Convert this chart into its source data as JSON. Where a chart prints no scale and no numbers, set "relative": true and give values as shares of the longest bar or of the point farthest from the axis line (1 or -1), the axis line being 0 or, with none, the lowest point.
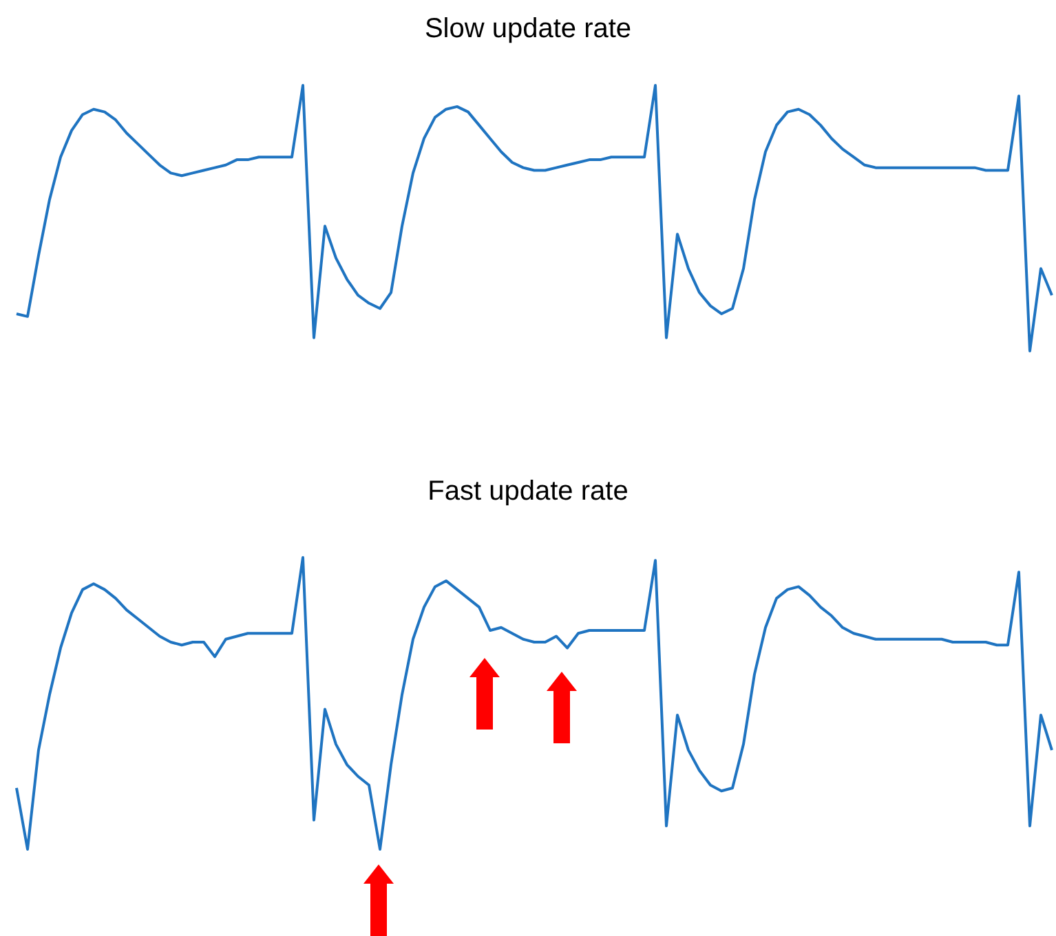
{
  "chart_data": [
    {
      "type": "line",
      "title": "Slow update rate",
      "relative": true,
      "tick_labels": false,
      "color": "#1f74c1",
      "categories": [
        null,
        null,
        null,
        null,
        null,
        null,
        null,
        null,
        null,
        null,
        null,
        null,
        null,
        null,
        null,
        null,
        null,
        null,
        null,
        null,
        null,
        null,
        null,
        null,
        null,
        null,
        null,
        null,
        null,
        null,
        null,
        null,
        null,
        null,
        null,
        null,
        null,
        null,
        null,
        null,
        null,
        null,
        null,
        null,
        null,
        null,
        null,
        null,
        null,
        null,
        null,
        null,
        null,
        null,
        null,
        null,
        null,
        null,
        null,
        null,
        null,
        null,
        null,
        null,
        null,
        null,
        null,
        null,
        null,
        null,
        null,
        null,
        null,
        null,
        null,
        null,
        null,
        null,
        null,
        null,
        null,
        null,
        null,
        null,
        null,
        null,
        null,
        null,
        null,
        null,
        null,
        null,
        null,
        null,
        null
      ],
      "values": [
        0.14,
        0.13,
        0.36,
        0.57,
        0.73,
        0.83,
        0.89,
        0.91,
        0.9,
        0.87,
        0.82,
        0.78,
        0.74,
        0.7,
        0.67,
        0.66,
        0.67,
        0.68,
        0.69,
        0.7,
        0.72,
        0.72,
        0.73,
        0.73,
        0.73,
        0.73,
        1,
        0.05,
        0.47,
        0.35,
        0.27,
        0.21,
        0.18,
        0.16,
        0.22,
        0.47,
        0.67,
        0.8,
        0.88,
        0.91,
        0.92,
        0.9,
        0.85,
        0.8,
        0.75,
        0.71,
        0.69,
        0.68,
        0.68,
        0.69,
        0.7,
        0.71,
        0.72,
        0.72,
        0.73,
        0.73,
        0.73,
        0.73,
        1,
        0.05,
        0.44,
        0.31,
        0.22,
        0.17,
        0.14,
        0.16,
        0.31,
        0.57,
        0.75,
        0.85,
        0.9,
        0.91,
        0.89,
        0.85,
        0.8,
        0.76,
        0.73,
        0.7,
        0.69,
        0.69,
        0.69,
        0.69,
        0.69,
        0.69,
        0.69,
        0.69,
        0.69,
        0.69,
        0.68,
        0.68,
        0.68,
        0.96,
        0,
        0.31,
        0.21
      ]
    },
    {
      "type": "line",
      "title": "Fast update rate",
      "relative": true,
      "tick_labels": false,
      "color": "#1f74c1",
      "categories": [
        null,
        null,
        null,
        null,
        null,
        null,
        null,
        null,
        null,
        null,
        null,
        null,
        null,
        null,
        null,
        null,
        null,
        null,
        null,
        null,
        null,
        null,
        null,
        null,
        null,
        null,
        null,
        null,
        null,
        null,
        null,
        null,
        null,
        null,
        null,
        null,
        null,
        null,
        null,
        null,
        null,
        null,
        null,
        null,
        null,
        null,
        null,
        null,
        null,
        null,
        null,
        null,
        null,
        null,
        null,
        null,
        null,
        null,
        null,
        null,
        null,
        null,
        null,
        null,
        null,
        null,
        null,
        null,
        null,
        null,
        null,
        null,
        null,
        null,
        null,
        null,
        null,
        null,
        null,
        null,
        null,
        null,
        null,
        null,
        null,
        null,
        null,
        null,
        null,
        null,
        null,
        null,
        null,
        null,
        null
      ],
      "values": [
        0.21,
        0,
        0.34,
        0.53,
        0.69,
        0.81,
        0.89,
        0.91,
        0.89,
        0.86,
        0.82,
        0.79,
        0.76,
        0.73,
        0.71,
        0.7,
        0.71,
        0.71,
        0.66,
        0.72,
        0.73,
        0.74,
        0.74,
        0.74,
        0.74,
        0.74,
        1,
        0.1,
        0.48,
        0.36,
        0.29,
        0.25,
        0.22,
        0,
        0.29,
        0.53,
        0.72,
        0.83,
        0.9,
        0.92,
        0.89,
        0.86,
        0.83,
        0.75,
        0.76,
        0.74,
        0.72,
        0.71,
        0.71,
        0.73,
        0.69,
        0.74,
        0.75,
        0.75,
        0.75,
        0.75,
        0.75,
        0.75,
        0.99,
        0.08,
        0.46,
        0.34,
        0.27,
        0.22,
        0.2,
        0.21,
        0.36,
        0.6,
        0.76,
        0.86,
        0.89,
        0.9,
        0.87,
        0.83,
        0.8,
        0.76,
        0.74,
        0.73,
        0.72,
        0.72,
        0.72,
        0.72,
        0.72,
        0.72,
        0.72,
        0.71,
        0.71,
        0.71,
        0.71,
        0.7,
        0.7,
        0.95,
        0.08,
        0.46,
        0.34
      ]
    }
  ]
}
